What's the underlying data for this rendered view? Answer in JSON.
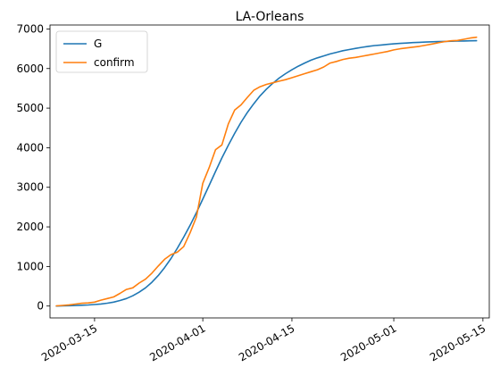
{
  "chart_data": {
    "type": "line",
    "title": "LA-Orleans",
    "xlabel": "",
    "ylabel": "",
    "x_start": "2020-03-09",
    "xlim": [
      "2020-03-08",
      "2020-05-16"
    ],
    "ylim": [
      -300,
      7100
    ],
    "x_ticks": [
      "2020-03-15",
      "2020-04-01",
      "2020-04-15",
      "2020-05-01",
      "2020-05-15"
    ],
    "y_ticks": [
      0,
      1000,
      2000,
      3000,
      4000,
      5000,
      6000,
      7000
    ],
    "y_tick_labels": [
      "0",
      "1000",
      "2000",
      "3000",
      "4000",
      "5000",
      "6000",
      "7000"
    ],
    "legend": {
      "position": "top-left",
      "entries": [
        "G",
        "confirm"
      ]
    },
    "grid": false,
    "series": [
      {
        "name": "G",
        "color": "#1f77b4",
        "style": "smooth-logistic",
        "values": [
          1,
          4,
          8,
          14,
          20,
          28,
          38,
          52,
          72,
          100,
          140,
          190,
          260,
          350,
          460,
          600,
          770,
          970,
          1200,
          1460,
          1740,
          2040,
          2360,
          2700,
          3050,
          3400,
          3740,
          4060,
          4360,
          4640,
          4890,
          5110,
          5310,
          5480,
          5630,
          5760,
          5870,
          5970,
          6060,
          6140,
          6210,
          6270,
          6320,
          6370,
          6410,
          6450,
          6480,
          6510,
          6535,
          6560,
          6580,
          6595,
          6610,
          6625,
          6635,
          6645,
          6655,
          6663,
          6670,
          6676,
          6681,
          6686,
          6690,
          6694,
          6697,
          6700,
          6703
        ]
      },
      {
        "name": "confirm",
        "color": "#ff7f0e",
        "style": "polyline",
        "values": [
          5,
          15,
          30,
          50,
          70,
          80,
          100,
          150,
          190,
          230,
          320,
          420,
          460,
          580,
          680,
          830,
          1010,
          1180,
          1300,
          1360,
          1500,
          1850,
          2250,
          3100,
          3500,
          3950,
          4070,
          4600,
          4950,
          5080,
          5270,
          5450,
          5540,
          5600,
          5640,
          5680,
          5720,
          5770,
          5820,
          5870,
          5920,
          5970,
          6040,
          6140,
          6180,
          6230,
          6260,
          6280,
          6310,
          6340,
          6370,
          6400,
          6430,
          6470,
          6500,
          6520,
          6540,
          6560,
          6590,
          6620,
          6650,
          6680,
          6700,
          6710,
          6740,
          6770,
          6790
        ]
      }
    ]
  }
}
